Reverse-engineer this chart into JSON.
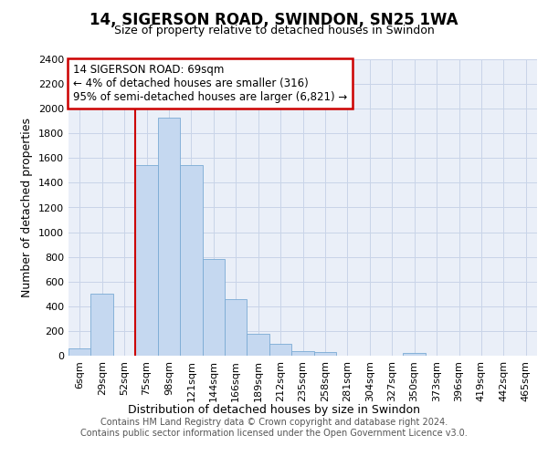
{
  "title": "14, SIGERSON ROAD, SWINDON, SN25 1WA",
  "subtitle": "Size of property relative to detached houses in Swindon",
  "xlabel": "Distribution of detached houses by size in Swindon",
  "ylabel": "Number of detached properties",
  "footer_line1": "Contains HM Land Registry data © Crown copyright and database right 2024.",
  "footer_line2": "Contains public sector information licensed under the Open Government Licence v3.0.",
  "categories": [
    "6sqm",
    "29sqm",
    "52sqm",
    "75sqm",
    "98sqm",
    "121sqm",
    "144sqm",
    "166sqm",
    "189sqm",
    "212sqm",
    "235sqm",
    "258sqm",
    "281sqm",
    "304sqm",
    "327sqm",
    "350sqm",
    "373sqm",
    "396sqm",
    "419sqm",
    "442sqm",
    "465sqm"
  ],
  "bar_values": [
    60,
    500,
    0,
    1540,
    1930,
    1540,
    780,
    460,
    180,
    95,
    35,
    30,
    0,
    0,
    0,
    25,
    0,
    0,
    0,
    0,
    0
  ],
  "bar_color": "#c5d8f0",
  "bar_edge_color": "#7aaad4",
  "grid_color": "#c8d4e8",
  "background_color": "#eaeff8",
  "annotation_text": "14 SIGERSON ROAD: 69sqm\n← 4% of detached houses are smaller (316)\n95% of semi-detached houses are larger (6,821) →",
  "annotation_box_color": "#ffffff",
  "annotation_box_edge": "#cc0000",
  "vline_x_index": 2.5,
  "vline_color": "#cc0000",
  "ylim": [
    0,
    2400
  ],
  "yticks": [
    0,
    200,
    400,
    600,
    800,
    1000,
    1200,
    1400,
    1600,
    1800,
    2000,
    2200,
    2400
  ],
  "title_fontsize": 12,
  "subtitle_fontsize": 9,
  "ylabel_fontsize": 9,
  "xlabel_fontsize": 9,
  "tick_fontsize": 8,
  "annotation_fontsize": 8.5,
  "footer_fontsize": 7
}
